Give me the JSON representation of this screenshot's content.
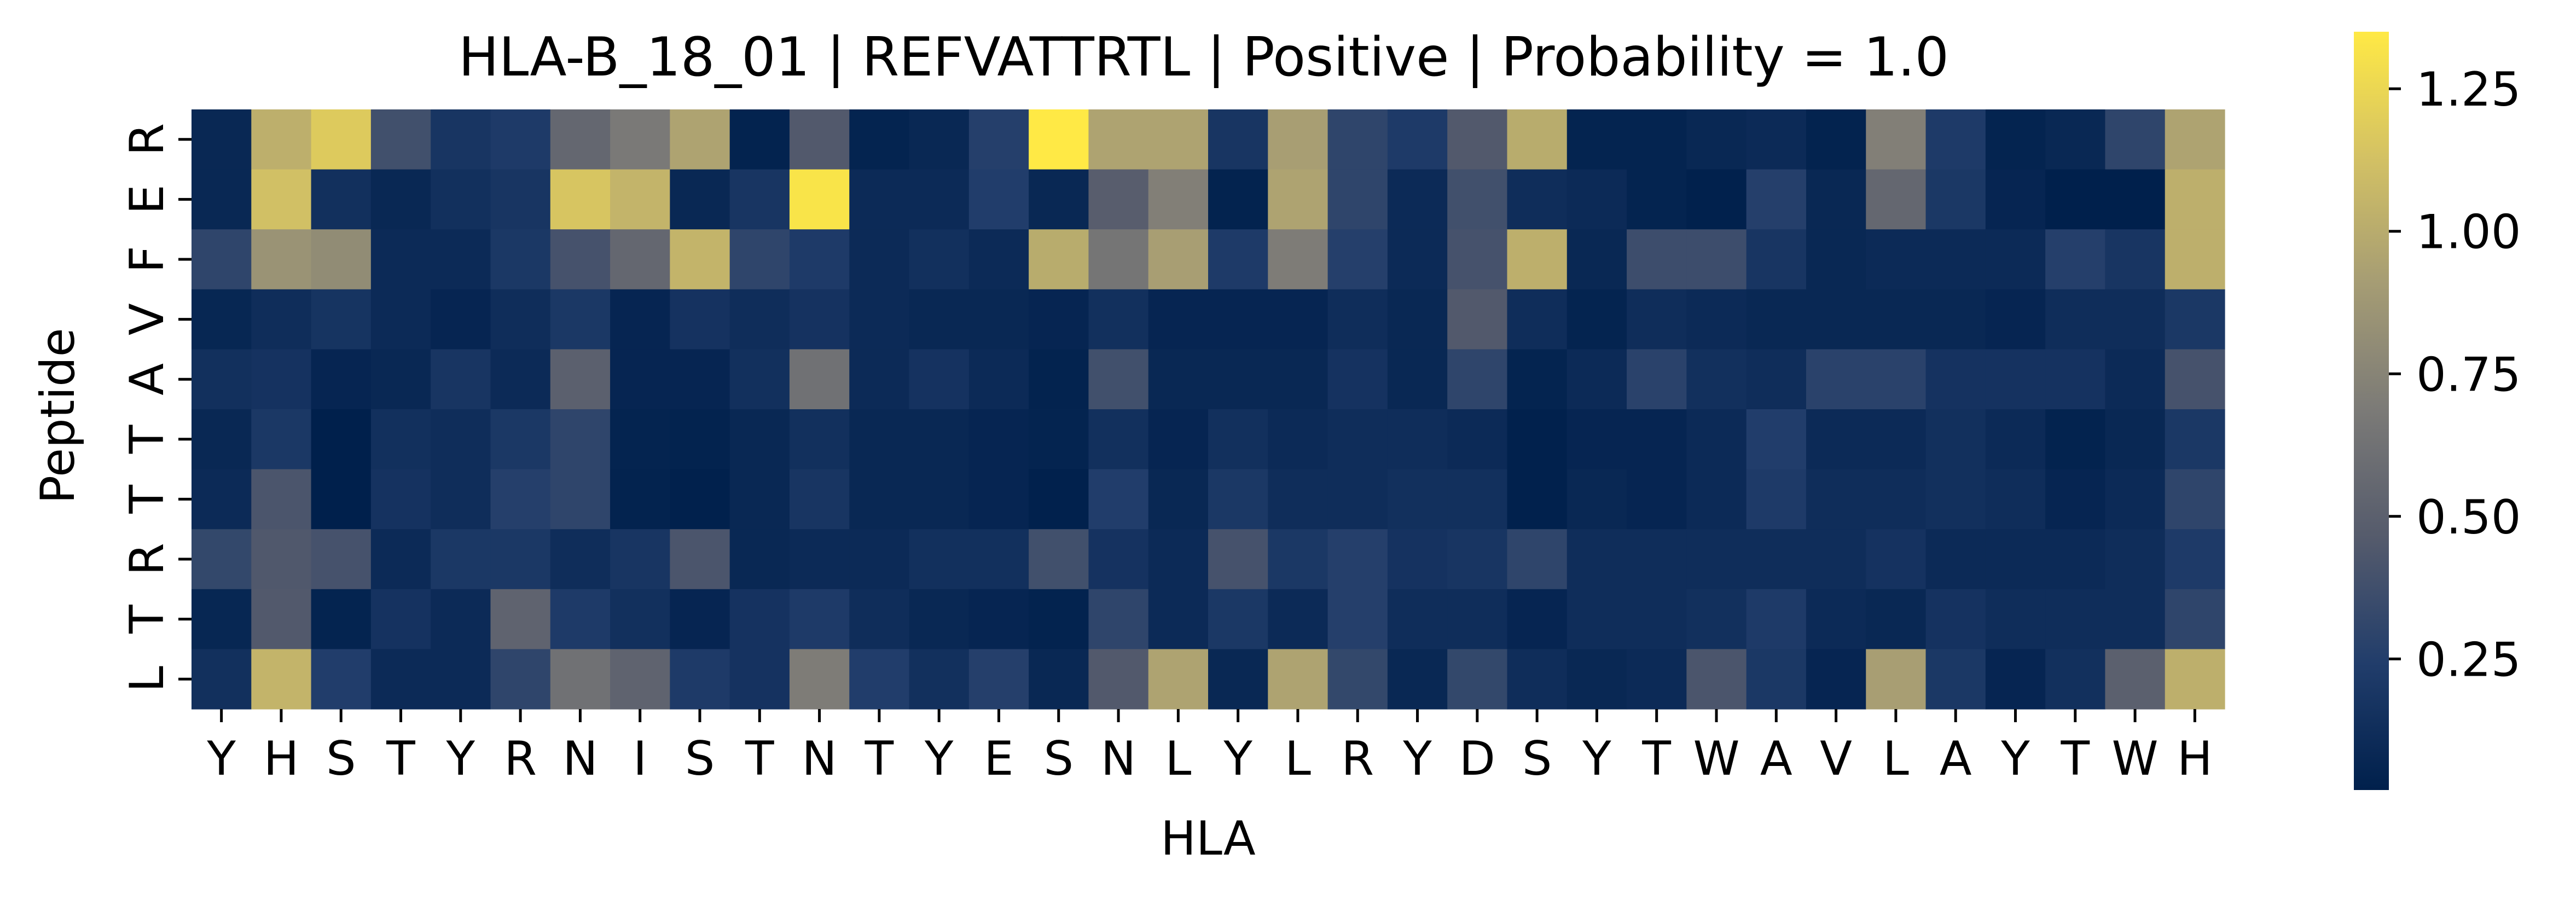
{
  "chart_data": {
    "type": "heatmap",
    "title": "HLA-B_18_01 | REFVATTRTL | Positive | Probability = 1.0",
    "xlabel": "HLA",
    "ylabel": "Peptide",
    "x_categories": [
      "Y",
      "H",
      "S",
      "T",
      "Y",
      "R",
      "N",
      "I",
      "S",
      "T",
      "N",
      "T",
      "Y",
      "E",
      "S",
      "N",
      "L",
      "Y",
      "L",
      "R",
      "Y",
      "D",
      "S",
      "Y",
      "T",
      "W",
      "A",
      "V",
      "L",
      "A",
      "Y",
      "T",
      "W",
      "H"
    ],
    "y_categories": [
      "R",
      "E",
      "F",
      "V",
      "A",
      "T",
      "T",
      "R",
      "T",
      "L"
    ],
    "values": [
      [
        0.08,
        1.02,
        1.18,
        0.38,
        0.18,
        0.22,
        0.55,
        0.68,
        0.95,
        0.04,
        0.45,
        0.05,
        0.08,
        0.26,
        1.35,
        0.95,
        0.95,
        0.18,
        0.92,
        0.3,
        0.22,
        0.45,
        1.0,
        0.05,
        0.05,
        0.08,
        0.1,
        0.04,
        0.72,
        0.22,
        0.05,
        0.08,
        0.3,
        0.95
      ],
      [
        0.08,
        1.12,
        0.14,
        0.08,
        0.14,
        0.18,
        1.15,
        1.05,
        0.08,
        0.18,
        1.32,
        0.1,
        0.1,
        0.24,
        0.08,
        0.48,
        0.72,
        0.04,
        0.95,
        0.3,
        0.1,
        0.38,
        0.12,
        0.1,
        0.05,
        0.03,
        0.26,
        0.08,
        0.55,
        0.2,
        0.06,
        0.02,
        0.02,
        1.02
      ],
      [
        0.3,
        0.85,
        0.8,
        0.1,
        0.1,
        0.2,
        0.4,
        0.55,
        1.05,
        0.3,
        0.22,
        0.1,
        0.14,
        0.1,
        1.0,
        0.65,
        0.92,
        0.22,
        0.7,
        0.26,
        0.1,
        0.4,
        1.02,
        0.08,
        0.36,
        0.36,
        0.18,
        0.08,
        0.1,
        0.1,
        0.1,
        0.26,
        0.18,
        1.02
      ],
      [
        0.07,
        0.12,
        0.17,
        0.1,
        0.06,
        0.12,
        0.2,
        0.06,
        0.16,
        0.12,
        0.16,
        0.1,
        0.08,
        0.08,
        0.06,
        0.14,
        0.06,
        0.06,
        0.06,
        0.12,
        0.08,
        0.45,
        0.12,
        0.05,
        0.12,
        0.1,
        0.08,
        0.08,
        0.08,
        0.08,
        0.06,
        0.12,
        0.12,
        0.2
      ],
      [
        0.14,
        0.16,
        0.06,
        0.08,
        0.18,
        0.1,
        0.5,
        0.06,
        0.06,
        0.14,
        0.62,
        0.1,
        0.16,
        0.1,
        0.04,
        0.38,
        0.08,
        0.08,
        0.08,
        0.16,
        0.08,
        0.3,
        0.05,
        0.1,
        0.28,
        0.14,
        0.12,
        0.28,
        0.28,
        0.16,
        0.16,
        0.16,
        0.1,
        0.4
      ],
      [
        0.08,
        0.2,
        0.02,
        0.14,
        0.12,
        0.2,
        0.3,
        0.05,
        0.04,
        0.08,
        0.14,
        0.08,
        0.08,
        0.06,
        0.05,
        0.14,
        0.06,
        0.14,
        0.1,
        0.12,
        0.12,
        0.1,
        0.03,
        0.06,
        0.06,
        0.1,
        0.24,
        0.1,
        0.1,
        0.14,
        0.1,
        0.04,
        0.08,
        0.2
      ],
      [
        0.1,
        0.42,
        0.02,
        0.16,
        0.12,
        0.26,
        0.3,
        0.04,
        0.03,
        0.08,
        0.18,
        0.08,
        0.08,
        0.06,
        0.03,
        0.24,
        0.08,
        0.2,
        0.12,
        0.12,
        0.14,
        0.14,
        0.03,
        0.08,
        0.06,
        0.1,
        0.22,
        0.12,
        0.12,
        0.14,
        0.12,
        0.06,
        0.1,
        0.3
      ],
      [
        0.32,
        0.44,
        0.4,
        0.1,
        0.2,
        0.2,
        0.12,
        0.18,
        0.42,
        0.08,
        0.1,
        0.1,
        0.14,
        0.14,
        0.38,
        0.16,
        0.1,
        0.4,
        0.2,
        0.26,
        0.16,
        0.18,
        0.3,
        0.12,
        0.12,
        0.12,
        0.12,
        0.12,
        0.16,
        0.1,
        0.1,
        0.1,
        0.12,
        0.22
      ],
      [
        0.07,
        0.45,
        0.05,
        0.16,
        0.1,
        0.52,
        0.22,
        0.14,
        0.06,
        0.16,
        0.22,
        0.12,
        0.08,
        0.06,
        0.04,
        0.3,
        0.1,
        0.2,
        0.1,
        0.26,
        0.12,
        0.12,
        0.06,
        0.12,
        0.12,
        0.14,
        0.22,
        0.1,
        0.08,
        0.16,
        0.12,
        0.12,
        0.12,
        0.3
      ],
      [
        0.14,
        1.05,
        0.24,
        0.1,
        0.1,
        0.3,
        0.62,
        0.52,
        0.22,
        0.16,
        0.7,
        0.24,
        0.14,
        0.26,
        0.08,
        0.45,
        0.95,
        0.08,
        0.95,
        0.32,
        0.08,
        0.32,
        0.12,
        0.08,
        0.1,
        0.42,
        0.2,
        0.06,
        0.92,
        0.2,
        0.06,
        0.14,
        0.5,
        1.02
      ]
    ],
    "colorbar": {
      "min": 0.02,
      "max": 1.35,
      "ticks": [
        "0.25",
        "0.50",
        "0.75",
        "1.00",
        "1.25"
      ],
      "colormap": "cividis",
      "stops": [
        "#00204c",
        "#213d6b",
        "#555b6c",
        "#7b7a77",
        "#a59c74",
        "#d3c164",
        "#ffe945"
      ]
    },
    "grid": false,
    "legend": "colorbar-right"
  }
}
